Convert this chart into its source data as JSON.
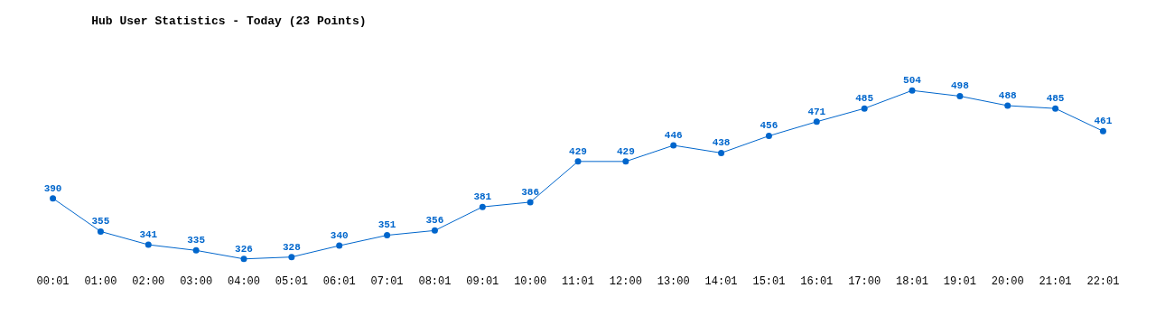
{
  "chart_data": {
    "type": "line",
    "title": "Hub User Statistics - Today (23 Points)",
    "categories": [
      "00:01",
      "01:00",
      "02:00",
      "03:00",
      "04:00",
      "05:01",
      "06:01",
      "07:01",
      "08:01",
      "09:01",
      "10:00",
      "11:01",
      "12:00",
      "13:00",
      "14:01",
      "15:01",
      "16:01",
      "17:00",
      "18:01",
      "19:01",
      "20:00",
      "21:01",
      "22:01"
    ],
    "series": [
      {
        "color": "#0066cc",
        "values": [
          390,
          355,
          341,
          335,
          326,
          328,
          340,
          351,
          356,
          381,
          386,
          429,
          429,
          446,
          438,
          456,
          471,
          485,
          504,
          498,
          488,
          485,
          461
        ]
      }
    ],
    "data_labels": true,
    "marker": "circle",
    "line_style": "solid",
    "grid": false,
    "legend": false,
    "tick_labels": "x"
  }
}
